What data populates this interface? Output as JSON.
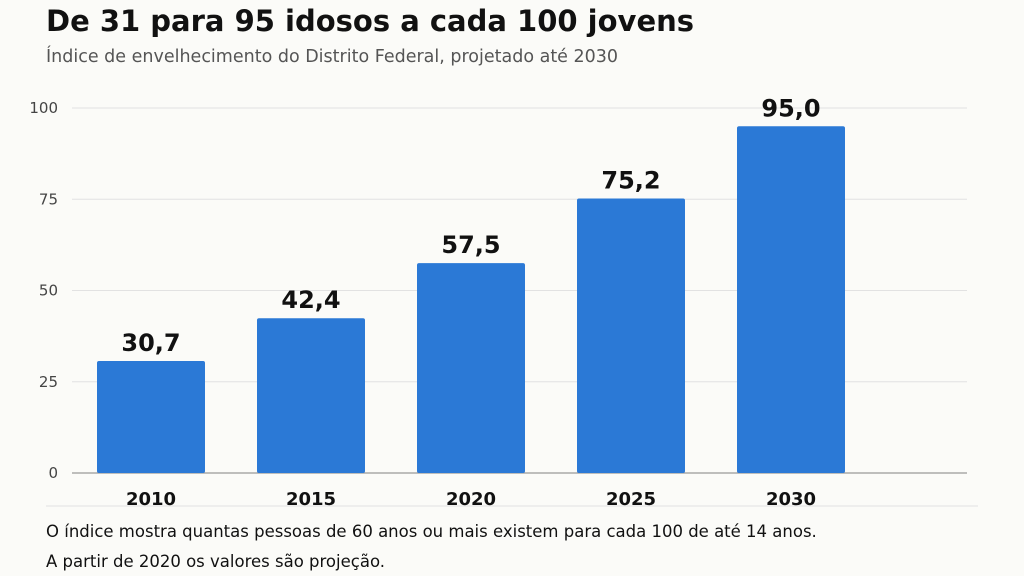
{
  "title": "De 31 para 95 idosos a cada 100 jovens",
  "subtitle": "Índice de envelhecimento do Distrito Federal, projetado até 2030",
  "notes": [
    "O índice mostra quantas pessoas de 60 anos ou mais existem para cada 100 de até 14 anos.",
    "A partir de 2020 os valores são projeção."
  ],
  "colors": {
    "bar": "#2b79d6",
    "grid": "#e2e2e2",
    "axis": "#999999",
    "background": "#fbfbf8"
  },
  "chart_data": {
    "type": "bar",
    "title": "De 31 para 95 idosos a cada 100 jovens",
    "subtitle": "Índice de envelhecimento do Distrito Federal, projetado até 2030",
    "categories": [
      "2010",
      "2015",
      "2020",
      "2025",
      "2030"
    ],
    "values": [
      30.7,
      42.4,
      57.5,
      75.2,
      95.0
    ],
    "value_labels": [
      "30,7",
      "42,4",
      "57,5",
      "75,2",
      "95,0"
    ],
    "yticks": [
      0,
      25,
      50,
      75,
      100
    ],
    "ylim": [
      0,
      100
    ],
    "xlabel": "",
    "ylabel": "",
    "grid": true,
    "legend": "none"
  }
}
